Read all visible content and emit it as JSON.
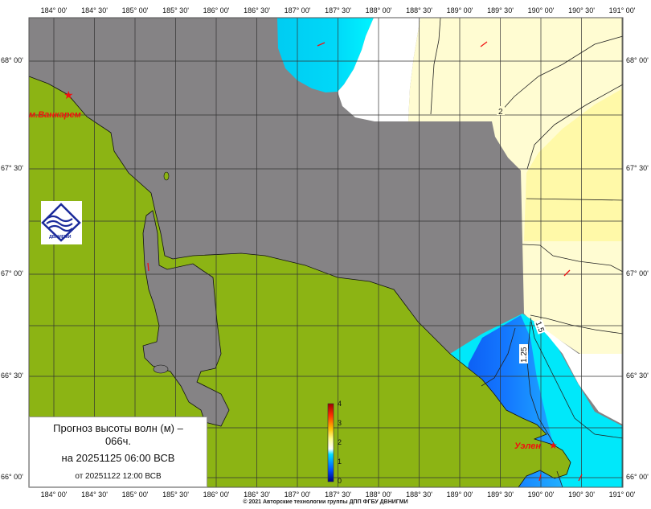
{
  "map": {
    "lon_labels": [
      "184° 00'",
      "184° 30'",
      "185° 00'",
      "185° 30'",
      "186° 00'",
      "186° 30'",
      "187° 00'",
      "187° 30'",
      "188° 00'",
      "188° 30'",
      "189° 00'",
      "189° 30'",
      "190° 00'",
      "190° 30'",
      "191° 00'"
    ],
    "lat_labels": [
      "68° 00'",
      "67° 30'",
      "67° 00'",
      "66° 30'",
      "66° 00'"
    ],
    "colors": {
      "land": "#8cb414",
      "no_data": "#858385",
      "grid": "#333333",
      "marker": "#f01010"
    },
    "places": [
      {
        "name": "м.Ванкарем"
      },
      {
        "name": "Уэлен"
      }
    ],
    "contour_labels": [
      "2",
      "1.5",
      "1.25"
    ]
  },
  "colorbar": {
    "ticks": [
      "4",
      "3",
      "2",
      "1",
      "0"
    ],
    "colors": [
      "#00007f",
      "#0050ff",
      "#00c8ff",
      "#ffffff",
      "#ffff80",
      "#ffc000",
      "#ff4000",
      "#a00000"
    ]
  },
  "legend": {
    "title_line1": "Прогноз высоты волн (м) –",
    "title_line2": "066ч.",
    "valid_time": "на 20251125 06:00 ВСВ",
    "issued_time": "от 20251122 12:00 ВСВ"
  },
  "logo": {
    "text": "ДВНИГМИ"
  },
  "footer": "© 2021 Авторские технологии группы ДПП ФГБУ ДВНИГМИ"
}
